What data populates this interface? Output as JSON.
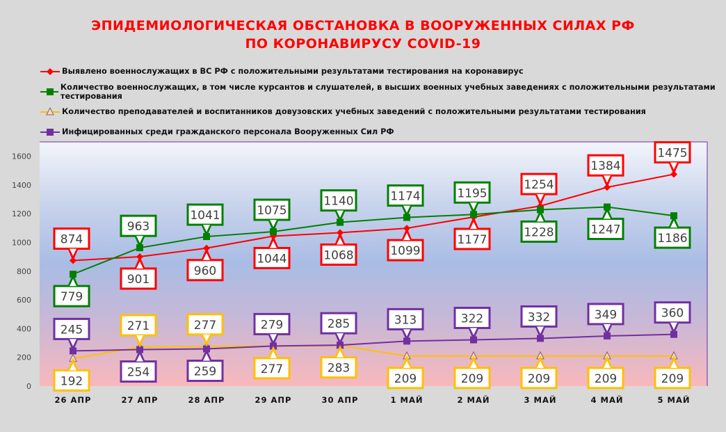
{
  "title": {
    "line1": "ЭПИДЕМИОЛОГИЧЕСКАЯ ОБСТАНОВКА В ВООРУЖЕННЫХ СИЛАХ РФ",
    "line2": "ПО КОРОНАВИРУСУ COVID-19"
  },
  "chart_data": {
    "type": "line",
    "title": "ЭПИДЕМИОЛОГИЧЕСКАЯ ОБСТАНОВКА В ВООРУЖЕННЫХ СИЛАХ РФ ПО КОРОНАВИРУСУ COVID-19",
    "xlabel": "",
    "ylabel": "",
    "ylim": [
      0,
      1700
    ],
    "yticks": [
      0,
      200,
      400,
      600,
      800,
      1000,
      1200,
      1400,
      1600
    ],
    "grid": false,
    "legend_position": "top",
    "categories": [
      "26 АПР",
      "27 АПР",
      "28 АПР",
      "29 АПР",
      "30 АПР",
      "1 МАЙ",
      "2 МАЙ",
      "3 МАЙ",
      "4 МАЙ",
      "5 МАЙ"
    ],
    "series": [
      {
        "name": "Выявлено военнослужащих в ВС РФ с положительными результатами тестирования на коронавирус",
        "color": "#ff0000",
        "marker": "diamond",
        "values": [
          874,
          901,
          960,
          1044,
          1068,
          1099,
          1177,
          1254,
          1384,
          1475
        ]
      },
      {
        "name": "Количество военнослужащих, в том числе курсантов и слушателей, в высших военных учебных заведениях с положительными результатами тестирования",
        "color": "#008000",
        "marker": "square",
        "values": [
          779,
          963,
          1041,
          1075,
          1140,
          1174,
          1195,
          1228,
          1247,
          1186
        ]
      },
      {
        "name": "Количество преподавателей и воспитанников довузовских учебных заведений с положительными результатами тестирования",
        "color": "#ffc000",
        "marker": "triangle",
        "values": [
          192,
          271,
          277,
          277,
          283,
          209,
          209,
          209,
          209,
          209
        ]
      },
      {
        "name": "Инфицированных среди гражданского персонала Вооруженных Сил РФ",
        "color": "#7030a0",
        "marker": "square",
        "values": [
          245,
          254,
          259,
          279,
          285,
          313,
          322,
          332,
          349,
          360
        ]
      }
    ]
  }
}
